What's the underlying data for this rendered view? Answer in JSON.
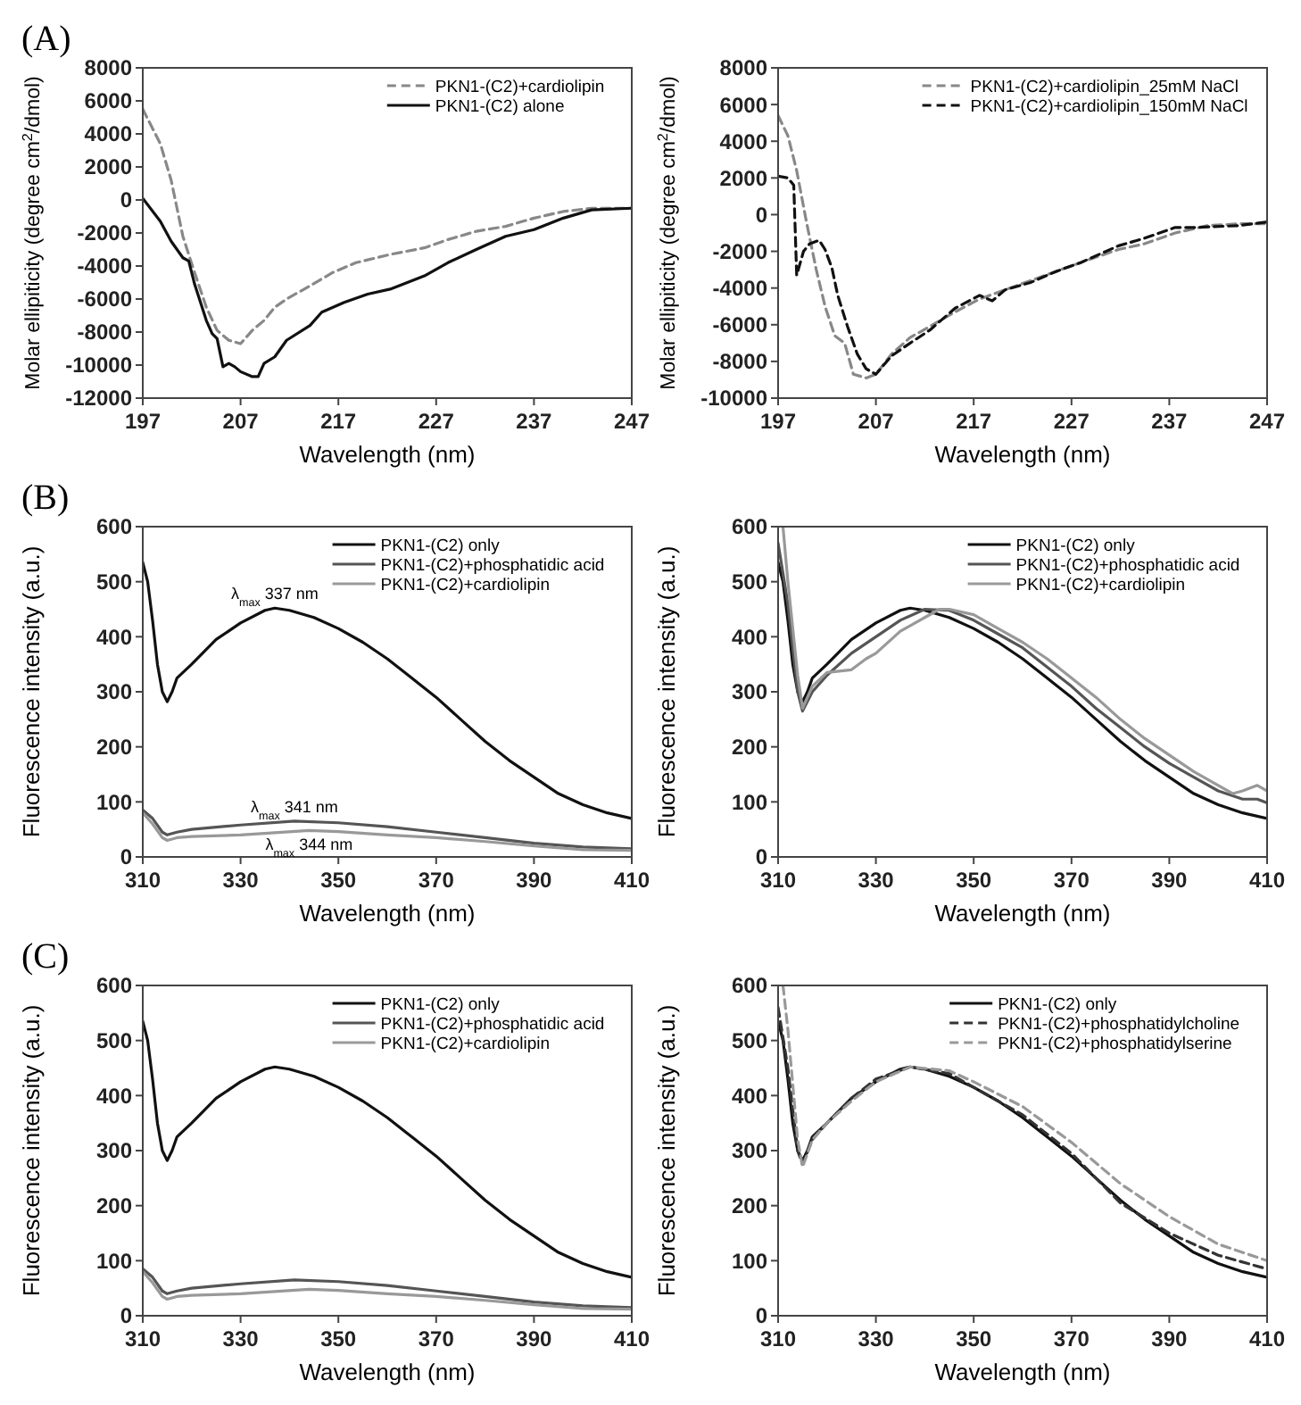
{
  "chart_data": [
    {
      "type": "line",
      "title": "(A)",
      "xlabel": "Wavelength (nm)",
      "ylabel": "Molar ellipiticity (degree cm$^{2}$/dmol)",
      "xlim": [
        197,
        247
      ],
      "xticks": [
        197,
        207,
        217,
        227,
        237,
        247
      ],
      "ylim": [
        -12000,
        8000
      ],
      "yticks": [
        -12000,
        -10000,
        -8000,
        -6000,
        -4000,
        -2000,
        0,
        2000,
        4000,
        6000,
        8000
      ],
      "legend": "top right",
      "series": [
        {
          "name": "PKN1-(C2)+cardiolipin",
          "color": "#888888",
          "line_style": "dashed",
          "x": [
            197,
            198.8,
            199.9,
            201.1,
            202.3,
            203.5,
            204.6,
            205.8,
            207,
            208.2,
            209.4,
            210.5,
            211.7,
            214.1,
            216.4,
            218.8,
            222.3,
            225.8,
            228.2,
            231.1,
            234.1,
            237,
            240,
            242.9,
            245.8,
            247
          ],
          "values": [
            5500,
            3400,
            1200,
            -2200,
            -4400,
            -6500,
            -7900,
            -8500,
            -8700,
            -7900,
            -7300,
            -6500,
            -6000,
            -5200,
            -4400,
            -3800,
            -3300,
            -2900,
            -2400,
            -1900,
            -1600,
            -1100,
            -700,
            -500,
            -500,
            -500
          ]
        },
        {
          "name": "PKN1-(C2) alone",
          "color": "#111111",
          "line_style": "solid",
          "x": [
            197,
            198.8,
            199.9,
            201.1,
            201.7,
            202.3,
            203.5,
            204.1,
            204.6,
            205.2,
            205.8,
            206.4,
            207,
            208.2,
            208.8,
            209.4,
            210.5,
            211.7,
            214.1,
            215.3,
            217.6,
            220,
            222.3,
            225.8,
            228.2,
            231.1,
            234.1,
            237,
            240,
            242.9,
            247
          ],
          "values": [
            100,
            -1300,
            -2500,
            -3500,
            -3700,
            -5100,
            -7300,
            -8100,
            -8400,
            -10100,
            -9900,
            -10100,
            -10400,
            -10700,
            -10700,
            -9900,
            -9500,
            -8500,
            -7600,
            -6800,
            -6200,
            -5700,
            -5400,
            -4600,
            -3800,
            -3000,
            -2200,
            -1800,
            -1100,
            -600,
            -500
          ]
        }
      ]
    },
    {
      "type": "line",
      "xlabel": "Wavelength (nm)",
      "ylabel": "Molar ellipiticity (degree cm$^{2}$/dmol)",
      "xlim": [
        197,
        247
      ],
      "xticks": [
        197,
        207,
        217,
        227,
        237,
        247
      ],
      "ylim": [
        -10000,
        8000
      ],
      "yticks": [
        -10000,
        -8000,
        -6000,
        -4000,
        -2000,
        0,
        2000,
        4000,
        6000,
        8000
      ],
      "legend": "top right",
      "series": [
        {
          "name": "PKN1-(C2)+cardiolipin_25mM NaCl",
          "color": "#888888",
          "line_style": "dashed",
          "x": [
            197,
            198,
            198.9,
            199.9,
            200.9,
            201.8,
            202.8,
            203.8,
            204.7,
            206,
            207,
            208.6,
            210.5,
            212.5,
            215.1,
            217.6,
            220.2,
            222.8,
            225.4,
            228,
            231.8,
            234.4,
            237.6,
            240.9,
            244.1,
            247
          ],
          "values": [
            5400,
            4300,
            2400,
            -400,
            -3000,
            -5000,
            -6600,
            -7000,
            -8700,
            -8900,
            -8700,
            -7600,
            -6700,
            -6100,
            -5300,
            -4600,
            -4100,
            -3600,
            -3100,
            -2600,
            -1900,
            -1600,
            -1000,
            -600,
            -500,
            -500
          ]
        },
        {
          "name": "PKN1-(C2)+cardiolipin_150mM NaCl",
          "color": "#111111",
          "line_style": "dashed",
          "x": [
            197,
            198,
            198.6,
            198.9,
            199.6,
            200.2,
            201.2,
            201.8,
            202.5,
            203.1,
            204.1,
            205.1,
            206,
            207,
            208.6,
            210.5,
            212.5,
            215.1,
            217.6,
            218.9,
            220.2,
            222.8,
            225.4,
            228,
            231.8,
            234.4,
            237.6,
            239.6,
            244.1,
            247
          ],
          "values": [
            2100,
            2000,
            1600,
            -3300,
            -2000,
            -1600,
            -1400,
            -1900,
            -2900,
            -4400,
            -6100,
            -7600,
            -8400,
            -8700,
            -7700,
            -7000,
            -6300,
            -5100,
            -4400,
            -4700,
            -4100,
            -3700,
            -3100,
            -2600,
            -1700,
            -1300,
            -700,
            -700,
            -600,
            -400
          ]
        }
      ]
    },
    {
      "type": "line",
      "title": "(B)",
      "xlabel": "Wavelength (nm)",
      "ylabel": "Fluorescence intensity (a.u.)",
      "xlim": [
        310,
        410
      ],
      "xticks": [
        310,
        330,
        350,
        370,
        390,
        410
      ],
      "ylim": [
        0,
        600
      ],
      "yticks": [
        0,
        100,
        200,
        300,
        400,
        500,
        600
      ],
      "legend": "top right",
      "annotations": [
        {
          "text": "λ$_{max}$ 337 nm",
          "x": 337,
          "y": 452
        },
        {
          "text": "λ$_{max}$ 341 nm",
          "x": 341,
          "y": 65
        },
        {
          "text": "λ$_{max}$ 344 nm",
          "x": 344,
          "y": 48
        }
      ],
      "series": [
        {
          "name": "PKN1-(C2) only",
          "color": "#111111",
          "line_style": "solid",
          "x": [
            310,
            311,
            312,
            313,
            314,
            315,
            316,
            317,
            320,
            325,
            330,
            335,
            337,
            340,
            345,
            350,
            355,
            360,
            365,
            370,
            375,
            380,
            385,
            390,
            395,
            400,
            405,
            410
          ],
          "values": [
            535,
            500,
            430,
            350,
            300,
            282,
            300,
            325,
            350,
            395,
            425,
            448,
            452,
            448,
            435,
            415,
            390,
            360,
            325,
            290,
            250,
            210,
            175,
            145,
            115,
            95,
            80,
            70
          ]
        },
        {
          "name": "PKN1-(C2)+phosphatidic acid",
          "color": "#555555",
          "line_style": "solid",
          "x": [
            310,
            312,
            314,
            315,
            317,
            320,
            330,
            341,
            350,
            360,
            370,
            380,
            390,
            400,
            410
          ],
          "values": [
            85,
            70,
            45,
            40,
            45,
            50,
            58,
            65,
            62,
            55,
            45,
            35,
            25,
            18,
            15
          ]
        },
        {
          "name": "PKN1-(C2)+cardiolipin",
          "color": "#999999",
          "line_style": "solid",
          "x": [
            310,
            312,
            314,
            315,
            317,
            320,
            330,
            344,
            350,
            360,
            370,
            380,
            390,
            400,
            410
          ],
          "values": [
            80,
            60,
            35,
            30,
            35,
            37,
            40,
            48,
            46,
            40,
            35,
            28,
            20,
            13,
            12
          ]
        }
      ]
    },
    {
      "type": "line",
      "xlabel": "Wavelength (nm)",
      "ylabel": "Fluorescence intensity (a.u.)",
      "xlim": [
        310,
        410
      ],
      "xticks": [
        310,
        330,
        350,
        370,
        390,
        410
      ],
      "ylim": [
        0,
        600
      ],
      "yticks": [
        0,
        100,
        200,
        300,
        400,
        500,
        600
      ],
      "legend": "top right",
      "series": [
        {
          "name": "PKN1-(C2) only",
          "color": "#111111",
          "line_style": "solid",
          "x": [
            310,
            311,
            312,
            313,
            314,
            315,
            316,
            317,
            320,
            325,
            330,
            335,
            337,
            340,
            345,
            350,
            355,
            360,
            365,
            370,
            375,
            380,
            385,
            390,
            395,
            400,
            405,
            410
          ],
          "values": [
            535,
            500,
            430,
            350,
            300,
            282,
            300,
            325,
            350,
            395,
            425,
            448,
            452,
            448,
            435,
            415,
            390,
            360,
            325,
            290,
            250,
            210,
            175,
            145,
            115,
            95,
            80,
            70
          ]
        },
        {
          "name": "PKN1-(C2)+phosphatidic acid",
          "color": "#555555",
          "line_style": "solid",
          "x": [
            310,
            312,
            314,
            315,
            317,
            320,
            325,
            330,
            335,
            340,
            345,
            350,
            355,
            360,
            365,
            370,
            375,
            380,
            385,
            390,
            395,
            400,
            405,
            408,
            410
          ],
          "values": [
            570,
            460,
            300,
            265,
            300,
            330,
            370,
            400,
            430,
            450,
            448,
            430,
            405,
            380,
            345,
            310,
            270,
            235,
            200,
            170,
            145,
            120,
            105,
            105,
            98
          ]
        },
        {
          "name": "PKN1-(C2)+cardiolipin",
          "color": "#999999",
          "line_style": "solid",
          "x": [
            311,
            312,
            314,
            315,
            317,
            320,
            325,
            328,
            330,
            335,
            340,
            343,
            345,
            350,
            355,
            360,
            365,
            370,
            375,
            380,
            385,
            390,
            395,
            400,
            403,
            405,
            408,
            410
          ],
          "values": [
            600,
            500,
            330,
            270,
            310,
            335,
            340,
            360,
            370,
            410,
            435,
            450,
            450,
            440,
            415,
            390,
            360,
            325,
            290,
            250,
            215,
            185,
            155,
            130,
            115,
            120,
            130,
            120
          ]
        }
      ]
    },
    {
      "type": "line",
      "title": "(C)",
      "xlabel": "Wavelength (nm)",
      "ylabel": "Fluorescence intensity (a.u.)",
      "xlim": [
        310,
        410
      ],
      "xticks": [
        310,
        330,
        350,
        370,
        390,
        410
      ],
      "ylim": [
        0,
        600
      ],
      "yticks": [
        0,
        100,
        200,
        300,
        400,
        500,
        600
      ],
      "legend": "top right",
      "series": [
        {
          "name": "PKN1-(C2) only",
          "color": "#111111",
          "line_style": "solid",
          "x": [
            310,
            311,
            312,
            313,
            314,
            315,
            316,
            317,
            320,
            325,
            330,
            335,
            337,
            340,
            345,
            350,
            355,
            360,
            365,
            370,
            375,
            380,
            385,
            390,
            395,
            400,
            405,
            410
          ],
          "values": [
            535,
            500,
            430,
            350,
            300,
            282,
            300,
            325,
            350,
            395,
            425,
            448,
            452,
            448,
            435,
            415,
            390,
            360,
            325,
            290,
            250,
            210,
            175,
            145,
            115,
            95,
            80,
            70
          ]
        },
        {
          "name": "PKN1-(C2)+phosphatidic acid",
          "color": "#555555",
          "line_style": "solid",
          "x": [
            310,
            312,
            314,
            315,
            317,
            320,
            330,
            341,
            350,
            360,
            370,
            380,
            390,
            400,
            410
          ],
          "values": [
            85,
            70,
            45,
            40,
            45,
            50,
            58,
            65,
            62,
            55,
            45,
            35,
            25,
            18,
            15
          ]
        },
        {
          "name": "PKN1-(C2)+cardiolipin",
          "color": "#999999",
          "line_style": "solid",
          "x": [
            310,
            312,
            314,
            315,
            317,
            320,
            330,
            344,
            350,
            360,
            370,
            380,
            390,
            400,
            410
          ],
          "values": [
            80,
            60,
            35,
            30,
            35,
            37,
            40,
            48,
            46,
            40,
            35,
            28,
            20,
            13,
            12
          ]
        }
      ]
    },
    {
      "type": "line",
      "xlabel": "Wavelength (nm)",
      "ylabel": "Fluorescence intensity (a.u.)",
      "xlim": [
        310,
        410
      ],
      "xticks": [
        310,
        330,
        350,
        370,
        390,
        410
      ],
      "ylim": [
        0,
        600
      ],
      "yticks": [
        0,
        100,
        200,
        300,
        400,
        500,
        600
      ],
      "legend": "top right",
      "series": [
        {
          "name": "PKN1-(C2) only",
          "color": "#111111",
          "line_style": "solid",
          "x": [
            310,
            311,
            312,
            313,
            314,
            315,
            316,
            317,
            320,
            325,
            330,
            335,
            337,
            340,
            345,
            350,
            355,
            360,
            365,
            370,
            375,
            380,
            385,
            390,
            395,
            400,
            405,
            410
          ],
          "values": [
            535,
            500,
            430,
            350,
            300,
            282,
            300,
            325,
            350,
            395,
            425,
            448,
            452,
            448,
            435,
            415,
            390,
            360,
            325,
            290,
            250,
            210,
            175,
            145,
            115,
            95,
            80,
            70
          ]
        },
        {
          "name": "PKN1-(C2)+phosphatidylcholine",
          "color": "#333333",
          "line_style": "dashed",
          "x": [
            310,
            312,
            314,
            315,
            317,
            320,
            325,
            330,
            337,
            345,
            350,
            360,
            370,
            380,
            390,
            400,
            410
          ],
          "values": [
            560,
            450,
            300,
            275,
            320,
            350,
            395,
            430,
            452,
            440,
            415,
            365,
            295,
            205,
            150,
            110,
            85
          ]
        },
        {
          "name": "PKN1-(C2)+phosphatidylserine",
          "color": "#999999",
          "line_style": "dashed",
          "x": [
            311,
            312,
            314,
            315,
            317,
            320,
            325,
            330,
            337,
            345,
            350,
            360,
            370,
            380,
            390,
            400,
            410
          ],
          "values": [
            600,
            520,
            320,
            270,
            320,
            350,
            390,
            425,
            452,
            445,
            425,
            380,
            315,
            240,
            180,
            130,
            100
          ]
        }
      ]
    }
  ]
}
